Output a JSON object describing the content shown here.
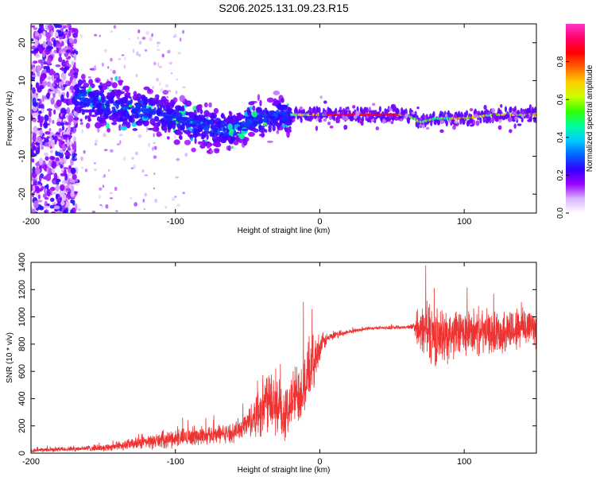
{
  "figure": {
    "title": "S206.2025.131.09.23.R15"
  },
  "chart_data": [
    {
      "type": "heatmap",
      "xlabel": "Height of straight line (km)",
      "ylabel": "Frequency (Hz)",
      "xlim": [
        -200,
        150
      ],
      "ylim": [
        -25,
        25
      ],
      "x_ticks": [
        -200,
        -100,
        0,
        100
      ],
      "y_ticks": [
        -20,
        -10,
        0,
        10,
        20
      ],
      "colorbar": {
        "label": "Normalized spectral amplitude",
        "range": [
          0,
          1
        ],
        "ticks": [
          "0.0",
          "0.2",
          "0.4",
          "0.6",
          "0.8"
        ],
        "tick_values": [
          0.0,
          0.2,
          0.4,
          0.6,
          0.8
        ],
        "colormap": [
          "#ffffff",
          "#d9b3ff",
          "#9900ff",
          "#3300ff",
          "#0066ff",
          "#00ccff",
          "#00ff99",
          "#33ff00",
          "#ccff00",
          "#ffcc00",
          "#ff6600",
          "#ff0000",
          "#ff0066",
          "#ff33cc"
        ]
      },
      "ridge": {
        "x": [
          -170,
          -160,
          -150,
          -140,
          -130,
          -120,
          -110,
          -100,
          -90,
          -80,
          -70,
          -60,
          -50,
          -40,
          -30,
          -20,
          0,
          40,
          60,
          70,
          80,
          100,
          120,
          150
        ],
        "freq": [
          6,
          5,
          4,
          3,
          2,
          2,
          1,
          0,
          -1,
          -2,
          -3,
          -3,
          -1,
          0,
          1,
          1,
          1,
          1,
          1,
          -1,
          0,
          0,
          1,
          1
        ]
      },
      "note_regions": "diffuse purple speckle for x < -170; ridge with scatter -170..-20; narrow bright band near 1 Hz for x > -20"
    },
    {
      "type": "line",
      "xlabel": "Height of straight line (km)",
      "ylabel": "SNR (10 * v/v)",
      "xlim": [
        -200,
        150
      ],
      "ylim": [
        0,
        1400
      ],
      "x_ticks": [
        -200,
        -100,
        0,
        100
      ],
      "y_ticks": [
        0,
        200,
        400,
        600,
        800,
        1000,
        1200,
        1400
      ],
      "color": "#ee3333",
      "envelope": {
        "x": [
          -200,
          -150,
          -120,
          -100,
          -80,
          -60,
          -50,
          -40,
          -35,
          -30,
          -25,
          -20,
          -10,
          -5,
          0,
          5,
          10,
          20,
          30,
          40,
          50,
          60,
          65,
          70,
          75,
          80,
          90,
          100,
          110,
          120,
          130,
          140,
          150
        ],
        "mean": [
          20,
          40,
          80,
          110,
          130,
          150,
          220,
          330,
          450,
          350,
          250,
          380,
          520,
          650,
          780,
          840,
          860,
          890,
          910,
          920,
          920,
          925,
          930,
          880,
          920,
          850,
          870,
          880,
          890,
          880,
          900,
          920,
          950
        ],
        "amp": [
          15,
          30,
          60,
          80,
          80,
          80,
          120,
          260,
          320,
          300,
          200,
          260,
          300,
          250,
          120,
          50,
          30,
          20,
          15,
          15,
          15,
          15,
          30,
          200,
          300,
          250,
          220,
          200,
          200,
          180,
          200,
          200,
          200
        ]
      }
    }
  ]
}
